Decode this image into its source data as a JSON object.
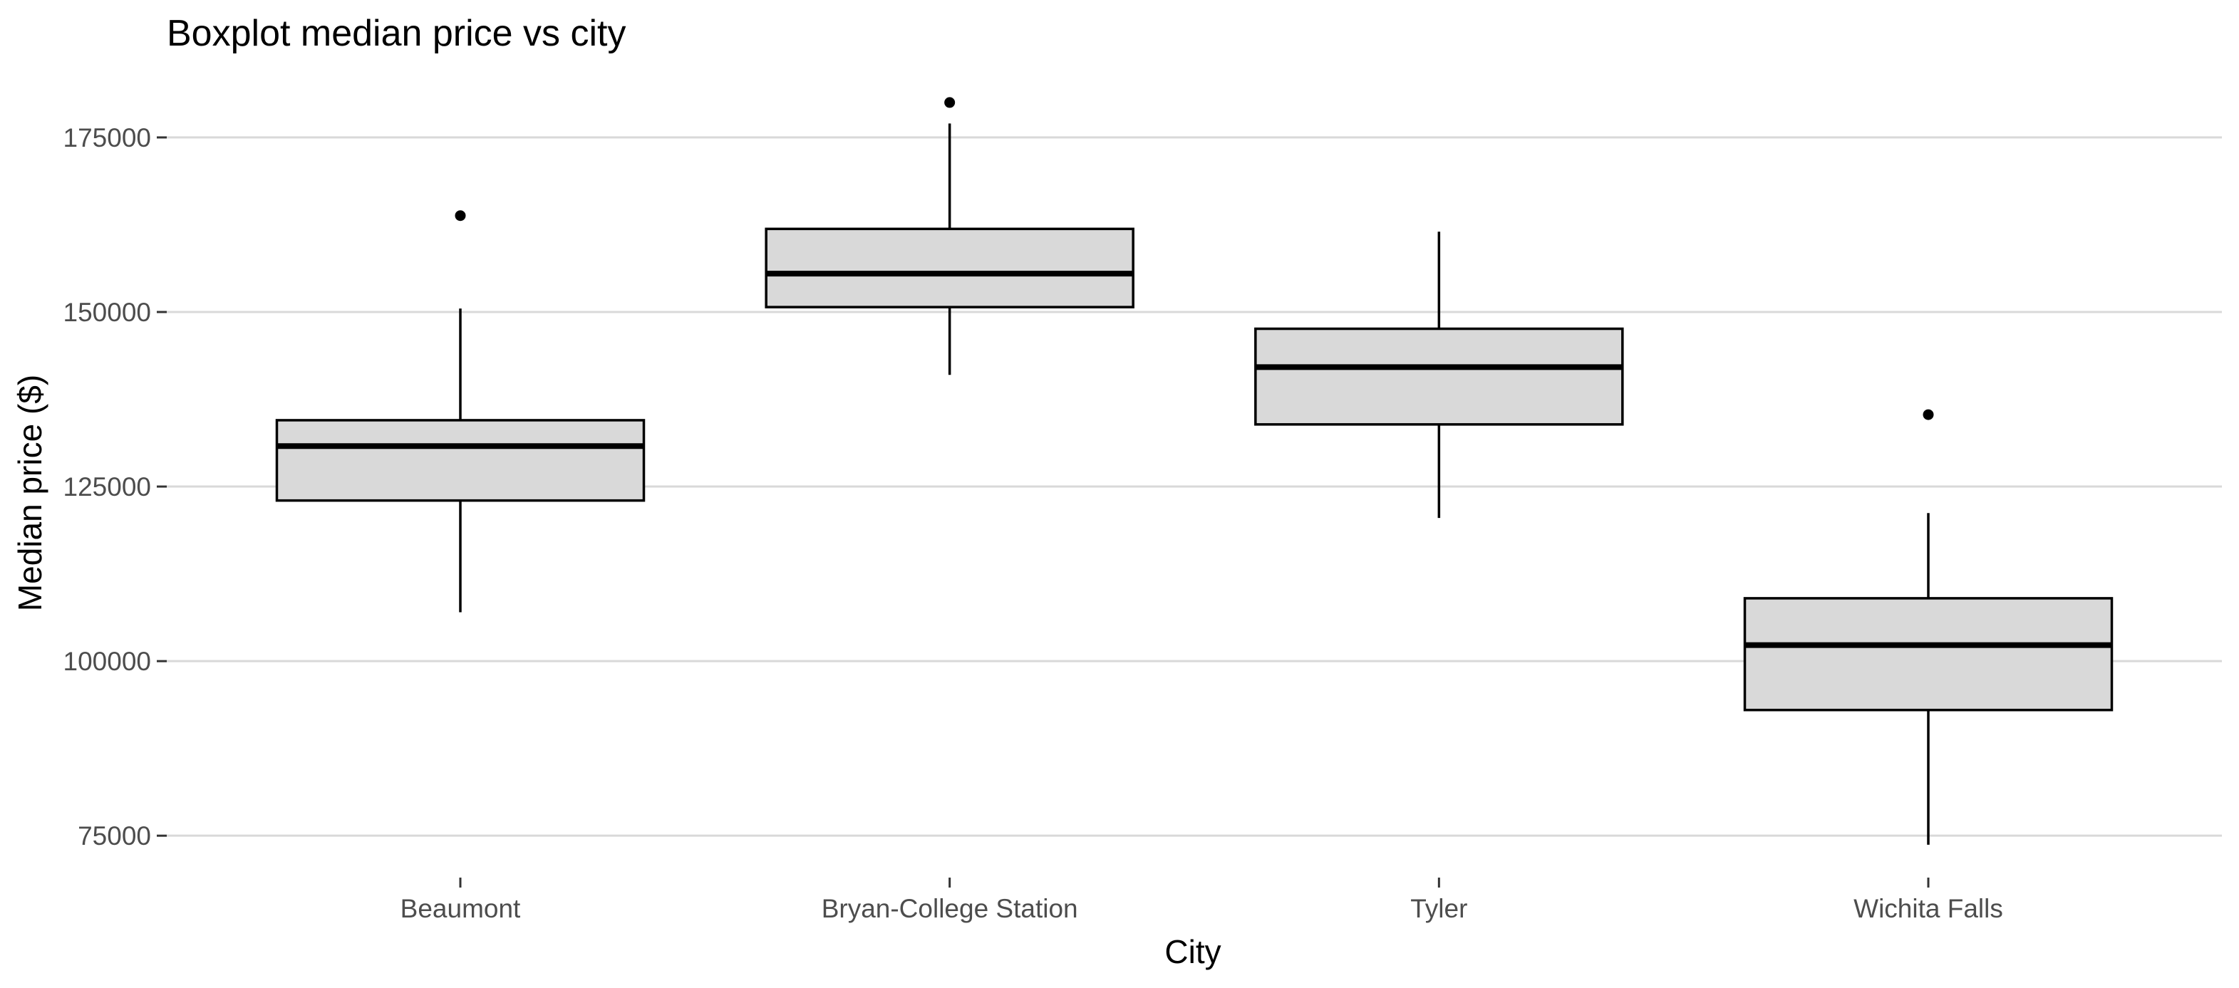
{
  "chart_data": {
    "type": "boxplot",
    "title": "Boxplot median price vs city",
    "xlabel": "City",
    "ylabel": "Median price ($)",
    "categories": [
      "Beaumont",
      "Bryan-College Station",
      "Tyler",
      "Wichita Falls"
    ],
    "ylim": [
      69000,
      185500
    ],
    "yticks": [
      75000,
      100000,
      125000,
      150000,
      175000
    ],
    "ytick_labels": [
      "75000",
      "100000",
      "125000",
      "150000",
      "175000"
    ],
    "grid": "horizontal major gridlines only",
    "legend": "none",
    "boxes": [
      {
        "category": "Beaumont",
        "whisker_low": 107000,
        "q1": 123000,
        "median": 130800,
        "q3": 134500,
        "whisker_high": 150500,
        "outliers": [
          163800
        ]
      },
      {
        "category": "Bryan-College Station",
        "whisker_low": 141000,
        "q1": 150700,
        "median": 155500,
        "q3": 161900,
        "whisker_high": 177000,
        "outliers": [
          180000
        ]
      },
      {
        "category": "Tyler",
        "whisker_low": 120500,
        "q1": 133900,
        "median": 142100,
        "q3": 147600,
        "whisker_high": 161500,
        "outliers": []
      },
      {
        "category": "Wichita Falls",
        "whisker_low": 73700,
        "q1": 93000,
        "median": 102300,
        "q3": 109000,
        "whisker_high": 121200,
        "outliers": [
          135300
        ]
      }
    ],
    "colors": {
      "box_fill": "#d9d9d9",
      "box_stroke": "#000000",
      "gridline": "#d9d9d9",
      "tick_text": "#4d4d4d",
      "text": "#000000"
    }
  }
}
